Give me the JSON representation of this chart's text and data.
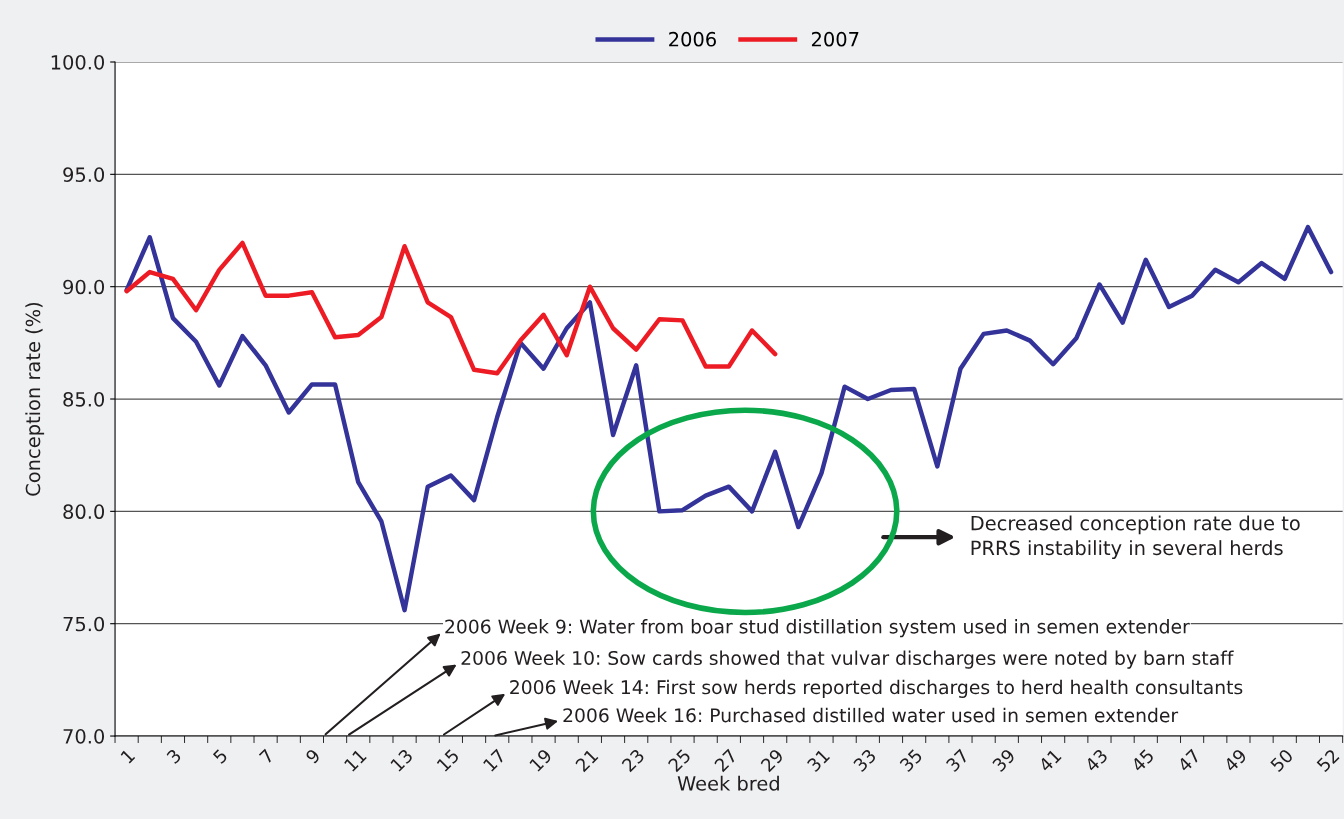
{
  "chart_data": {
    "type": "line",
    "xlabel": "Week bred",
    "ylabel": "Conception rate (%)",
    "categories": [
      "1",
      null,
      "3",
      null,
      "5",
      null,
      "7",
      null,
      "9",
      null,
      "11",
      null,
      "13",
      null,
      "15",
      null,
      "17",
      null,
      "19",
      null,
      "21",
      null,
      "23",
      null,
      "25",
      null,
      "27",
      null,
      "29",
      null,
      "31",
      null,
      "33",
      null,
      "35",
      null,
      "37",
      null,
      "39",
      null,
      "41",
      null,
      "43",
      null,
      "45",
      null,
      "47",
      null,
      "49",
      null,
      "50",
      null,
      "52"
    ],
    "series": [
      {
        "name": "2006",
        "color": "#333399",
        "values": [
          89.85,
          92.2,
          88.6,
          87.55,
          85.6,
          87.8,
          86.5,
          84.4,
          85.65,
          85.65,
          81.3,
          79.55,
          75.6,
          81.1,
          81.6,
          80.5,
          84.2,
          87.5,
          86.35,
          88.15,
          89.3,
          83.4,
          86.5,
          80.0,
          80.05,
          80.7,
          81.1,
          80.0,
          82.65,
          79.3,
          81.7,
          85.55,
          85.0,
          85.4,
          85.45,
          82.0,
          86.35,
          87.9,
          88.05,
          87.6,
          86.55,
          87.7,
          90.1,
          88.4,
          91.2,
          89.1,
          89.6,
          90.75,
          90.2,
          91.05,
          90.35,
          92.65,
          90.65
        ]
      },
      {
        "name": "2007",
        "color": "#ed1c24",
        "values": [
          89.8,
          90.65,
          90.35,
          88.95,
          90.75,
          91.95,
          89.6,
          89.6,
          89.75,
          87.75,
          87.85,
          88.65,
          91.8,
          89.3,
          88.65,
          86.3,
          86.15,
          87.6,
          88.75,
          86.95,
          90.0,
          88.15,
          87.2,
          88.55,
          88.5,
          86.45,
          86.45,
          88.05,
          87.0,
          null,
          null,
          null,
          null,
          null,
          null,
          null,
          null,
          null,
          null,
          null,
          null,
          null,
          null,
          null,
          null,
          null,
          null,
          null,
          null,
          null,
          null,
          null,
          null
        ]
      }
    ],
    "ylim": [
      70,
      100
    ],
    "yticks": [
      {
        "value": 70,
        "label": "70.0"
      },
      {
        "value": 75,
        "label": "75.0"
      },
      {
        "value": 80,
        "label": "80.0"
      },
      {
        "value": 85,
        "label": "85.0"
      },
      {
        "value": 90,
        "label": "90.0"
      },
      {
        "value": 95,
        "label": "95.0"
      },
      {
        "value": 100,
        "label": "100.0"
      }
    ],
    "grid": "y",
    "legend": "top",
    "marker": "none",
    "line_style": "solid",
    "annotations": [
      "2006 Week 9: Water from boar stud distillation system used in semen extender",
      "2006 Week 10: Sow cards showed that vulvar discharges were noted by barn staff",
      "2006 Week 14: First sow herds reported discharges to herd health consultants",
      "2006 Week 16: Purchased distilled water used in semen extender",
      "Decreased conception rate due to\nPRRS instability in several herds"
    ]
  }
}
